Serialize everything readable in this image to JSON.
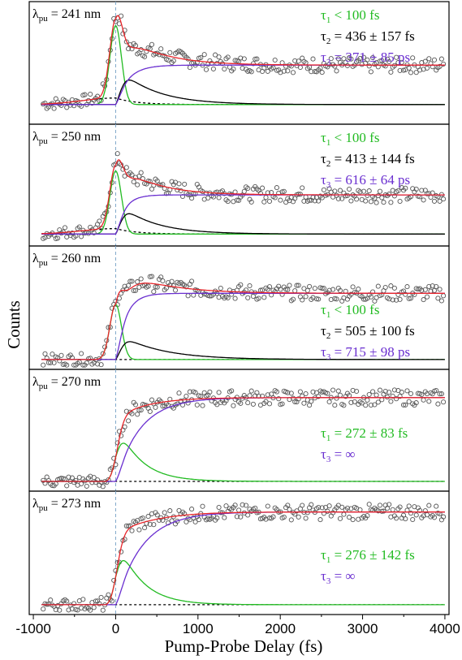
{
  "chart_data": {
    "type": "line",
    "xlabel": "Pump-Probe Delay (fs)",
    "ylabel": "Counts",
    "xlim": [
      -1050,
      4050
    ],
    "xticks": [
      "-1000",
      "0",
      "1000",
      "2000",
      "3000",
      "4000"
    ],
    "xtick_values": [
      -1000,
      0,
      1000,
      2000,
      3000,
      4000
    ],
    "colors": {
      "data": "#555555",
      "total_fit": "#e8262b",
      "tau1": "#22bb22",
      "tau2": "#000000",
      "tau3": "#6a2fd0",
      "baseline": "#000000",
      "zero_line": "#7fa7c9"
    },
    "panels": [
      {
        "lambda_prefix": "λ",
        "lambda_sub": "pu",
        "lambda_value": " = 241 nm",
        "annotation_pos": "upper-right",
        "taus": [
          {
            "sym": "τ",
            "sub": "1",
            "text": " < 100 fs",
            "color": "#22bb22"
          },
          {
            "sym": "τ",
            "sub": "2",
            "text": " = 436 ± 157 fs",
            "color": "#000000"
          },
          {
            "sym": "τ",
            "sub": "3",
            "text": " = 371 ± 85 ps",
            "color": "#6a2fd0"
          }
        ],
        "model": {
          "base": 0.12,
          "pre": 0.06,
          "g": 0.72,
          "t2": 0.33,
          "plateau": 0.36,
          "peak": 0.99,
          "tau1": 90,
          "tau2": 436,
          "rise": 150
        }
      },
      {
        "lambda_prefix": "λ",
        "lambda_sub": "pu",
        "lambda_value": " = 250 nm",
        "annotation_pos": "upper-right",
        "taus": [
          {
            "sym": "τ",
            "sub": "1",
            "text": " < 100 fs",
            "color": "#22bb22"
          },
          {
            "sym": "τ",
            "sub": "2",
            "text": " = 413 ± 144 fs",
            "color": "#000000"
          },
          {
            "sym": "τ",
            "sub": "3",
            "text": " = 616 ± 64 ps",
            "color": "#6a2fd0"
          }
        ],
        "model": {
          "base": 0.05,
          "pre": 0.05,
          "g": 0.58,
          "t2": 0.28,
          "plateau": 0.36,
          "peak": 0.98,
          "tau1": 90,
          "tau2": 413,
          "rise": 110
        }
      },
      {
        "lambda_prefix": "λ",
        "lambda_sub": "pu",
        "lambda_value": " = 260 nm",
        "annotation_pos": "lower-right",
        "taus": [
          {
            "sym": "τ",
            "sub": "1",
            "text": " < 100 fs",
            "color": "#22bb22"
          },
          {
            "sym": "τ",
            "sub": "2",
            "text": " = 505 ± 100 fs",
            "color": "#000000"
          },
          {
            "sym": "τ",
            "sub": "3",
            "text": " = 715 ± 98 ps",
            "color": "#6a2fd0"
          }
        ],
        "model": {
          "base": 0.03,
          "pre": 0.0,
          "g": 0.5,
          "t2": 0.23,
          "plateau": 0.6,
          "peak": 0.9,
          "tau1": 90,
          "tau2": 505,
          "rise": 120
        }
      },
      {
        "lambda_prefix": "λ",
        "lambda_sub": "pu",
        "lambda_value": " = 270 nm",
        "annotation_pos": "lower-right",
        "taus": [
          {
            "sym": "τ",
            "sub": "1",
            "text": " = 272 ± 83 fs",
            "color": "#22bb22"
          },
          {
            "sym": "τ",
            "sub": "3",
            "text": " = ∞",
            "color": "#6a2fd0"
          }
        ],
        "model": {
          "base": 0.03,
          "pre": 0.0,
          "g": 0.0,
          "t1": 0.6,
          "t1tau": 272,
          "plateau": 0.77,
          "peak": 0.97,
          "rise": 300
        }
      },
      {
        "lambda_prefix": "λ",
        "lambda_sub": "pu",
        "lambda_value": " = 273 nm",
        "annotation_pos": "lower-right",
        "taus": [
          {
            "sym": "τ",
            "sub": "1",
            "text": " = 276 ± 142 fs",
            "color": "#22bb22"
          },
          {
            "sym": "τ",
            "sub": "3",
            "text": " = ∞",
            "color": "#6a2fd0"
          }
        ],
        "model": {
          "base": 0.03,
          "pre": 0.0,
          "g": 0.0,
          "t1": 0.68,
          "t1tau": 276,
          "plateau": 0.84,
          "peak": 0.98,
          "rise": 320
        }
      }
    ]
  }
}
